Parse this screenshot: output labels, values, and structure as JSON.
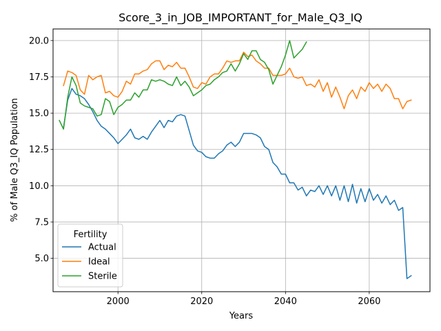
{
  "chart_data": {
    "type": "line",
    "title": "Score_3_in_JOB_IMPORTANT_for_Male_Q3_IQ",
    "xlabel": "Years",
    "ylabel": "% of Male Q3_IQ Population",
    "xlim": [
      1984.5,
      2074.5
    ],
    "ylim": [
      2.7,
      20.8
    ],
    "xticks": [
      2000,
      2020,
      2040,
      2060
    ],
    "yticks": [
      5.0,
      7.5,
      10.0,
      12.5,
      15.0,
      17.5,
      20.0
    ],
    "grid": true,
    "legend": {
      "title": "Fertility",
      "placement": "lower-left"
    },
    "series": [
      {
        "name": "Actual",
        "color": "#1f77b4",
        "x": [
          1987,
          1988,
          1989,
          1990,
          1991,
          1992,
          1993,
          1994,
          1995,
          1996,
          1997,
          1998,
          1999,
          2000,
          2001,
          2002,
          2003,
          2004,
          2005,
          2006,
          2007,
          2008,
          2009,
          2010,
          2011,
          2012,
          2013,
          2014,
          2015,
          2016,
          2017,
          2018,
          2019,
          2020,
          2021,
          2022,
          2023,
          2024,
          2025,
          2026,
          2027,
          2028,
          2029,
          2030,
          2031,
          2032,
          2033,
          2034,
          2035,
          2036,
          2037,
          2038,
          2039,
          2040,
          2041,
          2042,
          2043,
          2044,
          2045,
          2046,
          2047,
          2048,
          2049,
          2050,
          2051,
          2052,
          2053,
          2054,
          2055,
          2056,
          2057,
          2058,
          2059,
          2060,
          2061,
          2062,
          2063,
          2064,
          2065,
          2066,
          2067,
          2068,
          2069,
          2070
        ],
        "values": [
          14.0,
          15.9,
          16.7,
          16.3,
          16.2,
          16.0,
          15.6,
          15.1,
          14.5,
          14.1,
          13.9,
          13.6,
          13.3,
          12.9,
          13.2,
          13.5,
          13.9,
          13.3,
          13.2,
          13.4,
          13.2,
          13.7,
          14.1,
          14.5,
          14.0,
          14.5,
          14.4,
          14.8,
          14.9,
          14.8,
          13.8,
          12.8,
          12.4,
          12.3,
          12.0,
          11.9,
          11.9,
          12.2,
          12.4,
          12.8,
          13.0,
          12.7,
          13.0,
          13.6,
          13.6,
          13.6,
          13.5,
          13.3,
          12.7,
          12.5,
          11.6,
          11.3,
          10.8,
          10.8,
          10.2,
          10.2,
          9.7,
          9.9,
          9.3,
          9.7,
          9.6,
          10.0,
          9.4,
          10.0,
          9.3,
          10.0,
          9.0,
          10.0,
          8.9,
          10.1,
          8.8,
          9.8,
          8.9,
          9.8,
          9.0,
          9.4,
          8.8,
          9.3,
          8.7,
          9.0,
          8.3,
          8.5,
          3.6,
          3.8
        ]
      },
      {
        "name": "Ideal",
        "color": "#ff7f0e",
        "x": [
          1987,
          1988,
          1989,
          1990,
          1991,
          1992,
          1993,
          1994,
          1995,
          1996,
          1997,
          1998,
          1999,
          2000,
          2001,
          2002,
          2003,
          2004,
          2005,
          2006,
          2007,
          2008,
          2009,
          2010,
          2011,
          2012,
          2013,
          2014,
          2015,
          2016,
          2017,
          2018,
          2019,
          2020,
          2021,
          2022,
          2023,
          2024,
          2025,
          2026,
          2027,
          2028,
          2029,
          2030,
          2031,
          2032,
          2033,
          2034,
          2035,
          2036,
          2037,
          2038,
          2039,
          2040,
          2041,
          2042,
          2043,
          2044,
          2045,
          2046,
          2047,
          2048,
          2049,
          2050,
          2051,
          2052,
          2053,
          2054,
          2055,
          2056,
          2057,
          2058,
          2059,
          2060,
          2061,
          2062,
          2063,
          2064,
          2065,
          2066,
          2067,
          2068,
          2069,
          2070
        ],
        "values": [
          16.9,
          17.9,
          17.8,
          17.6,
          16.6,
          16.3,
          17.6,
          17.3,
          17.5,
          17.6,
          16.4,
          16.5,
          16.2,
          16.1,
          16.5,
          17.2,
          17.0,
          17.7,
          17.7,
          17.9,
          18.0,
          18.4,
          18.6,
          18.6,
          18.0,
          18.3,
          18.2,
          18.5,
          18.1,
          18.1,
          17.5,
          16.8,
          16.7,
          17.1,
          17.0,
          17.5,
          17.7,
          17.7,
          18.1,
          18.6,
          18.5,
          18.6,
          18.6,
          19.2,
          18.9,
          19.0,
          18.6,
          18.4,
          18.1,
          18.1,
          17.6,
          17.6,
          17.6,
          17.7,
          18.1,
          17.5,
          17.4,
          17.5,
          16.9,
          17.0,
          16.8,
          17.3,
          16.5,
          17.1,
          16.1,
          16.8,
          16.1,
          15.3,
          16.2,
          16.6,
          16.0,
          16.8,
          16.5,
          17.1,
          16.7,
          17.0,
          16.5,
          17.0,
          16.7,
          16.0,
          16.0,
          15.3,
          15.8,
          15.9
        ]
      },
      {
        "name": "Sterile",
        "color": "#2ca02c",
        "x": [
          1986,
          1987,
          1988,
          1989,
          1990,
          1991,
          1992,
          1993,
          1994,
          1995,
          1996,
          1997,
          1998,
          1999,
          2000,
          2001,
          2002,
          2003,
          2004,
          2005,
          2006,
          2007,
          2008,
          2009,
          2010,
          2011,
          2012,
          2013,
          2014,
          2015,
          2016,
          2017,
          2018,
          2019,
          2020,
          2021,
          2022,
          2023,
          2024,
          2025,
          2026,
          2027,
          2028,
          2029,
          2030,
          2031,
          2032,
          2033,
          2034,
          2035,
          2036,
          2037,
          2038,
          2039,
          2040,
          2041,
          2042,
          2043,
          2044,
          2045
        ],
        "values": [
          14.5,
          13.9,
          16.1,
          17.5,
          16.9,
          15.7,
          15.5,
          15.4,
          15.3,
          14.8,
          14.9,
          16.0,
          15.8,
          14.9,
          15.4,
          15.6,
          15.9,
          15.9,
          16.4,
          16.1,
          16.6,
          16.6,
          17.3,
          17.2,
          17.3,
          17.2,
          17.0,
          16.9,
          17.5,
          16.9,
          17.2,
          16.8,
          16.2,
          16.4,
          16.6,
          16.9,
          17.0,
          17.3,
          17.5,
          17.8,
          17.9,
          18.4,
          17.9,
          18.4,
          19.1,
          18.7,
          19.3,
          19.3,
          18.7,
          18.5,
          18.0,
          17.0,
          17.6,
          18.2,
          19.0,
          20.0,
          18.8,
          19.1,
          19.4,
          19.9
        ]
      }
    ]
  }
}
